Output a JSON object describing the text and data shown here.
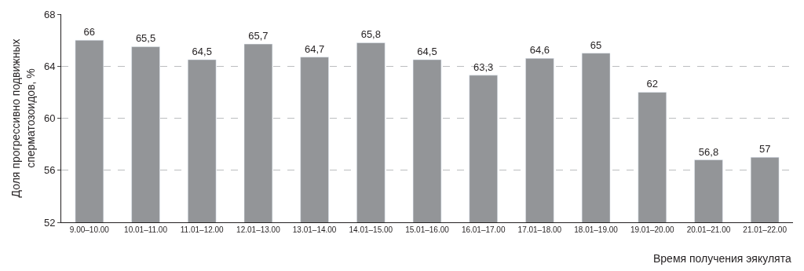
{
  "chart_data": {
    "type": "bar",
    "categories": [
      "9.00–10.00",
      "10.01–11.00",
      "11.01–12.00",
      "12.01–13.00",
      "13.01–14.00",
      "14.01–15.00",
      "15.01–16.00",
      "16.01–17.00",
      "17.01–18.00",
      "18.01–19.00",
      "19.01–20.00",
      "20.01–21.00",
      "21.01–22.00"
    ],
    "values": [
      66,
      65.5,
      64.5,
      65.7,
      64.7,
      65.8,
      64.5,
      63.3,
      64.6,
      65,
      62,
      56.8,
      57
    ],
    "value_labels": [
      "66",
      "65,5",
      "64,5",
      "65,7",
      "64,7",
      "65,8",
      "64,5",
      "63,3",
      "64,6",
      "65",
      "62",
      "56,8",
      "57"
    ],
    "color": "#939598",
    "xlabel": "Время получения эякулята",
    "ylabel": "Доля прогрессивно подвижных\nсперматозоидов, %",
    "ylim": [
      52,
      68
    ],
    "yticks": [
      52,
      56,
      60,
      64,
      68
    ],
    "grid": "y",
    "line_style": "dashed",
    "legend": false
  }
}
